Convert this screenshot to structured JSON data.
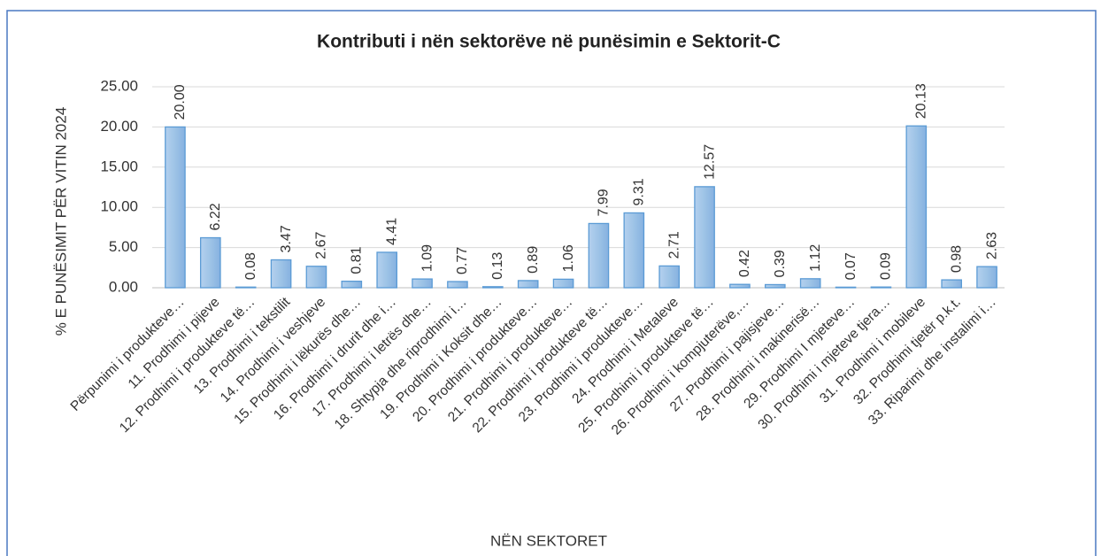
{
  "chart_data": {
    "type": "bar",
    "title": "Kontributi i nën sektorëve në punësimin e Sektorit-C",
    "x_label": "NËN SEKTORET",
    "y_label": "% E PUNËSIMIT PËR VITIN 2024",
    "categories": [
      "Përpunimi i produkteve…",
      "11. Prodhimi i pijeve",
      "12. Prodhimi i produkteve të…",
      "13. Prodhimi i   tekstilit",
      "14. Prodhimi i  veshjeve",
      "15. Prodhimi i  lëkurës dhe…",
      "16. Prodhimi i drurit dhe i…",
      "17. Prodhimi i letrës dhe…",
      "18. Shtypja dhe riprodhimi i…",
      "19. Prodhimi i Koksit dhe…",
      "20. Prodhimi i produkteve…",
      "21. Prodhimi i produkteve…",
      "22. Prodhimi i produkteve të…",
      "23. Prodhimi i produkteve…",
      "24. Prodhimi i Metaleve",
      "25. Prodhimi i produkteve të…",
      "26. Prodhimi i kompjuterëve,…",
      "27. Prodhimi i pajisjeve…",
      "28. Prodhimi i makinerisë…",
      "29. Prodhimi I mjeteve…",
      "30. Prodhimi i mjeteve tjera…",
      "31. Prodhimi i mobileve",
      "32. Prodhimi tjetër p.k.t.",
      "33. Riparimi dhe instalimi i…"
    ],
    "values": [
      20.0,
      6.22,
      0.08,
      3.47,
      2.67,
      0.81,
      4.41,
      1.09,
      0.77,
      0.13,
      0.89,
      1.06,
      7.99,
      9.31,
      2.71,
      12.57,
      0.42,
      0.39,
      1.12,
      0.07,
      0.09,
      20.13,
      0.98,
      2.63
    ],
    "value_labels": [
      "20.00",
      "6.22",
      "0.08",
      "3.47",
      "2.67",
      "0.81",
      "4.41",
      "1.09",
      "0.77",
      "0.13",
      "0.89",
      "1.06",
      "7.99",
      "9.31",
      "2.71",
      "12.57",
      "0.42",
      "0.39",
      "1.12",
      "0.07",
      "0.09",
      "20.13",
      "0.98",
      "2.63"
    ],
    "color": "#9dc3e6",
    "ylim": [
      0,
      25
    ],
    "yticks": [
      {
        "value": 0,
        "label": "0.00"
      },
      {
        "value": 5,
        "label": "5.00"
      },
      {
        "value": 10,
        "label": "10.00"
      },
      {
        "value": 15,
        "label": "15.00"
      },
      {
        "value": 20,
        "label": "20.00"
      },
      {
        "value": 25,
        "label": "25.00"
      }
    ],
    "grid": true
  }
}
